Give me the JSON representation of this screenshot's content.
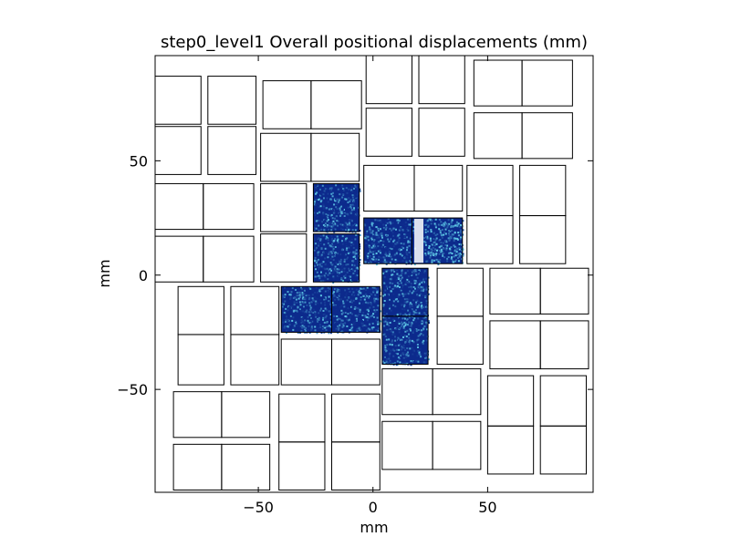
{
  "chart_data": {
    "type": "heatmap",
    "title": "step0_level1 Overall positional displacements (mm)",
    "xlabel": "mm",
    "ylabel": "mm",
    "xlim": [
      -95,
      96
    ],
    "ylim": [
      -95,
      96
    ],
    "xticks": [
      {
        "value": -50,
        "label": "−50"
      },
      {
        "value": 0,
        "label": "0"
      },
      {
        "value": 50,
        "label": "50"
      }
    ],
    "yticks": [
      {
        "value": 50,
        "label": "50"
      },
      {
        "value": 0,
        "label": "0"
      },
      {
        "value": -50,
        "label": "−50"
      }
    ],
    "grid": false,
    "legend": "none",
    "colors": {
      "sensor_edge": "#000000",
      "fill_low": "#0c2a8c",
      "fill_high": "#5ec8e6",
      "axes": "#000000"
    },
    "modules": [
      {
        "x0": -95,
        "x1": -75,
        "y0": 66,
        "y1": 87,
        "filled": false
      },
      {
        "x0": -95,
        "x1": -75,
        "y0": 44,
        "y1": 65,
        "filled": false
      },
      {
        "x0": -72,
        "x1": -51,
        "y0": 66,
        "y1": 87,
        "filled": false
      },
      {
        "x0": -72,
        "x1": -51,
        "y0": 44,
        "y1": 65,
        "filled": false
      },
      {
        "x0": -48,
        "x1": -27,
        "y0": 64,
        "y1": 85,
        "filled": false
      },
      {
        "x0": -27,
        "x1": -5,
        "y0": 64,
        "y1": 85,
        "filled": false
      },
      {
        "x0": -49,
        "x1": -27,
        "y0": 41,
        "y1": 62,
        "filled": false
      },
      {
        "x0": -27,
        "x1": -6,
        "y0": 41,
        "y1": 62,
        "filled": false
      },
      {
        "x0": -3,
        "x1": 17,
        "y0": 75,
        "y1": 96,
        "filled": false
      },
      {
        "x0": -3,
        "x1": 17,
        "y0": 52,
        "y1": 73,
        "filled": false
      },
      {
        "x0": 20,
        "x1": 40,
        "y0": 75,
        "y1": 96,
        "filled": false
      },
      {
        "x0": 20,
        "x1": 40,
        "y0": 52,
        "y1": 73,
        "filled": false
      },
      {
        "x0": 44,
        "x1": 65,
        "y0": 74,
        "y1": 94,
        "filled": false
      },
      {
        "x0": 65,
        "x1": 87,
        "y0": 74,
        "y1": 94,
        "filled": false
      },
      {
        "x0": 44,
        "x1": 65,
        "y0": 51,
        "y1": 71,
        "filled": false
      },
      {
        "x0": 65,
        "x1": 87,
        "y0": 51,
        "y1": 71,
        "filled": false
      },
      {
        "x0": -4,
        "x1": 18,
        "y0": 28,
        "y1": 48,
        "filled": false
      },
      {
        "x0": 18,
        "x1": 39,
        "y0": 28,
        "y1": 48,
        "filled": false
      },
      {
        "x0": -95,
        "x1": -74,
        "y0": 20,
        "y1": 40,
        "filled": false
      },
      {
        "x0": -74,
        "x1": -52,
        "y0": 20,
        "y1": 40,
        "filled": false
      },
      {
        "x0": -95,
        "x1": -74,
        "y0": -3,
        "y1": 17,
        "filled": false
      },
      {
        "x0": -74,
        "x1": -52,
        "y0": -3,
        "y1": 17,
        "filled": false
      },
      {
        "x0": -49,
        "x1": -29,
        "y0": 19,
        "y1": 40,
        "filled": false
      },
      {
        "x0": -49,
        "x1": -29,
        "y0": -3,
        "y1": 18,
        "filled": false
      },
      {
        "x0": -26,
        "x1": -6,
        "y0": 19,
        "y1": 40,
        "filled": true,
        "seed": 11
      },
      {
        "x0": -26,
        "x1": -6,
        "y0": -3,
        "y1": 18,
        "filled": true,
        "seed": 23
      },
      {
        "x0": -4,
        "x1": 17,
        "y0": 5,
        "y1": 25,
        "filled": true,
        "seed": 37
      },
      {
        "x0": 17,
        "x1": 39,
        "y0": 5,
        "y1": 25,
        "filled": true,
        "seed": 41,
        "gap": [
          18,
          22
        ]
      },
      {
        "x0": 41,
        "x1": 61,
        "y0": 26,
        "y1": 48,
        "filled": false
      },
      {
        "x0": 41,
        "x1": 61,
        "y0": 5,
        "y1": 26,
        "filled": false
      },
      {
        "x0": 64,
        "x1": 84,
        "y0": 26,
        "y1": 48,
        "filled": false
      },
      {
        "x0": 64,
        "x1": 84,
        "y0": 5,
        "y1": 26,
        "filled": false
      },
      {
        "x0": -85,
        "x1": -65,
        "y0": -26,
        "y1": -5,
        "filled": false
      },
      {
        "x0": -85,
        "x1": -65,
        "y0": -48,
        "y1": -26,
        "filled": false
      },
      {
        "x0": -62,
        "x1": -41,
        "y0": -26,
        "y1": -5,
        "filled": false
      },
      {
        "x0": -62,
        "x1": -41,
        "y0": -48,
        "y1": -26,
        "filled": false
      },
      {
        "x0": -40,
        "x1": -18,
        "y0": -25,
        "y1": -5,
        "filled": true,
        "seed": 53
      },
      {
        "x0": -18,
        "x1": 3,
        "y0": -25,
        "y1": -5,
        "filled": true,
        "seed": 67
      },
      {
        "x0": -40,
        "x1": -18,
        "y0": -48,
        "y1": -28,
        "filled": false
      },
      {
        "x0": -18,
        "x1": 3,
        "y0": -48,
        "y1": -28,
        "filled": false
      },
      {
        "x0": 4,
        "x1": 24,
        "y0": -18,
        "y1": 3,
        "filled": true,
        "seed": 71
      },
      {
        "x0": 4,
        "x1": 24,
        "y0": -39,
        "y1": -18,
        "filled": true,
        "seed": 83
      },
      {
        "x0": 28,
        "x1": 48,
        "y0": -18,
        "y1": 3,
        "filled": false
      },
      {
        "x0": 28,
        "x1": 48,
        "y0": -39,
        "y1": -18,
        "filled": false
      },
      {
        "x0": 51,
        "x1": 73,
        "y0": -17,
        "y1": 3,
        "filled": false
      },
      {
        "x0": 73,
        "x1": 94,
        "y0": -17,
        "y1": 3,
        "filled": false
      },
      {
        "x0": 51,
        "x1": 73,
        "y0": -41,
        "y1": -20,
        "filled": false
      },
      {
        "x0": 73,
        "x1": 94,
        "y0": -41,
        "y1": -20,
        "filled": false
      },
      {
        "x0": 4,
        "x1": 26,
        "y0": -61,
        "y1": -41,
        "filled": false
      },
      {
        "x0": 26,
        "x1": 47,
        "y0": -61,
        "y1": -41,
        "filled": false
      },
      {
        "x0": 4,
        "x1": 26,
        "y0": -85,
        "y1": -64,
        "filled": false
      },
      {
        "x0": 26,
        "x1": 47,
        "y0": -85,
        "y1": -64,
        "filled": false
      },
      {
        "x0": -87,
        "x1": -66,
        "y0": -71,
        "y1": -51,
        "filled": false
      },
      {
        "x0": -66,
        "x1": -45,
        "y0": -71,
        "y1": -51,
        "filled": false
      },
      {
        "x0": -87,
        "x1": -66,
        "y0": -94,
        "y1": -74,
        "filled": false
      },
      {
        "x0": -66,
        "x1": -45,
        "y0": -94,
        "y1": -74,
        "filled": false
      },
      {
        "x0": -41,
        "x1": -21,
        "y0": -73,
        "y1": -52,
        "filled": false
      },
      {
        "x0": -41,
        "x1": -21,
        "y0": -94,
        "y1": -73,
        "filled": false
      },
      {
        "x0": -18,
        "x1": 3,
        "y0": -73,
        "y1": -52,
        "filled": false
      },
      {
        "x0": -18,
        "x1": 3,
        "y0": -94,
        "y1": -73,
        "filled": false
      },
      {
        "x0": 50,
        "x1": 70,
        "y0": -66,
        "y1": -44,
        "filled": false
      },
      {
        "x0": 50,
        "x1": 70,
        "y0": -87,
        "y1": -66,
        "filled": false
      },
      {
        "x0": 73,
        "x1": 93,
        "y0": -66,
        "y1": -44,
        "filled": false
      },
      {
        "x0": 73,
        "x1": 93,
        "y0": -87,
        "y1": -66,
        "filled": false
      }
    ]
  }
}
